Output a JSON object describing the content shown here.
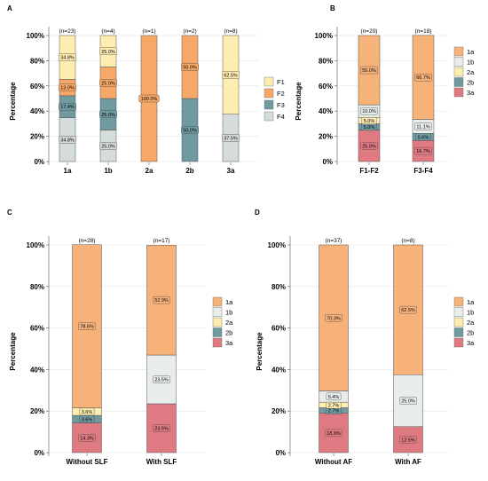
{
  "chart_data": [
    {
      "type": "bar",
      "panel": "A",
      "ylabel": "Percentage",
      "ylim": [
        0,
        100
      ],
      "yticks": [
        "0%",
        "20%",
        "40%",
        "60%",
        "80%",
        "100%"
      ],
      "categories": [
        "1a",
        "1b",
        "2a",
        "2b",
        "3a"
      ],
      "counts": [
        "(n=23)",
        "(n=4)",
        "(n=1)",
        "(n=2)",
        "(n=8)"
      ],
      "series": [
        {
          "name": "F4",
          "color": "#d5dcdc",
          "values": [
            34.8,
            25.0,
            0,
            0,
            37.5
          ],
          "labels": [
            "34.8%",
            "25.0%",
            "",
            "",
            "37.5%"
          ]
        },
        {
          "name": "F3",
          "color": "#6f9aa0",
          "values": [
            17.4,
            25.0,
            0,
            50.0,
            0
          ],
          "labels": [
            "17.4%",
            "25.0%",
            "",
            "50.0%",
            ""
          ]
        },
        {
          "name": "F2",
          "color": "#f7a867",
          "values": [
            13.0,
            25.0,
            100.0,
            50.0,
            0
          ],
          "labels": [
            "13.0%",
            "25.0%",
            "100.0%",
            "50.0%",
            ""
          ]
        },
        {
          "name": "F1",
          "color": "#fdedb0",
          "values": [
            34.8,
            25.0,
            0,
            0,
            62.5
          ],
          "labels": [
            "34.8%",
            "25.0%",
            "",
            "",
            "62.5%"
          ]
        }
      ],
      "legend": [
        "F1",
        "F2",
        "F3",
        "F4"
      ],
      "legend_position": "right"
    },
    {
      "type": "bar",
      "panel": "B",
      "ylabel": "Percentage",
      "ylim": [
        0,
        100
      ],
      "yticks": [
        "0%",
        "20%",
        "40%",
        "60%",
        "80%",
        "100%"
      ],
      "categories": [
        "F1-F2",
        "F3-F4"
      ],
      "counts": [
        "(n=20)",
        "(n=18)"
      ],
      "series": [
        {
          "name": "3a",
          "color": "#e07a82",
          "values": [
            25.0,
            16.7
          ],
          "labels": [
            "25.0%",
            "16.7%"
          ]
        },
        {
          "name": "2b",
          "color": "#6f9aa0",
          "values": [
            5.0,
            5.6
          ],
          "labels": [
            "5.0%",
            "5.6%"
          ]
        },
        {
          "name": "2a",
          "color": "#fdedb0",
          "values": [
            5.0,
            0
          ],
          "labels": [
            "5.0%",
            ""
          ]
        },
        {
          "name": "1b",
          "color": "#e8edec",
          "values": [
            10.0,
            11.1
          ],
          "labels": [
            "10.0%",
            "11.1%"
          ]
        },
        {
          "name": "1a",
          "color": "#f7b27a",
          "values": [
            55.0,
            66.7
          ],
          "labels": [
            "55.0%",
            "66.7%"
          ]
        }
      ],
      "legend": [
        "1a",
        "1b",
        "2a",
        "2b",
        "3a"
      ],
      "legend_position": "right"
    },
    {
      "type": "bar",
      "panel": "C",
      "ylabel": "Percentage",
      "ylim": [
        0,
        100
      ],
      "yticks": [
        "0%",
        "20%",
        "40%",
        "60%",
        "80%",
        "100%"
      ],
      "categories": [
        "Without SLF",
        "With SLF"
      ],
      "counts": [
        "(n=28)",
        "(n=17)"
      ],
      "series": [
        {
          "name": "3a",
          "color": "#e07a82",
          "values": [
            14.3,
            23.5
          ],
          "labels": [
            "14.3%",
            "23.5%"
          ]
        },
        {
          "name": "2b",
          "color": "#6f9aa0",
          "values": [
            3.6,
            0
          ],
          "labels": [
            "3.6%",
            ""
          ]
        },
        {
          "name": "2a",
          "color": "#fdedb0",
          "values": [
            3.6,
            0
          ],
          "labels": [
            "3.6%",
            ""
          ]
        },
        {
          "name": "1b",
          "color": "#e8edec",
          "values": [
            0,
            23.5
          ],
          "labels": [
            "",
            "23.5%"
          ]
        },
        {
          "name": "1a",
          "color": "#f7b27a",
          "values": [
            78.6,
            52.9
          ],
          "labels": [
            "78.6%",
            "52.9%"
          ]
        }
      ],
      "legend": [
        "1a",
        "1b",
        "2a",
        "2b",
        "3a"
      ],
      "legend_position": "right"
    },
    {
      "type": "bar",
      "panel": "D",
      "ylabel": "Percentage",
      "ylim": [
        0,
        100
      ],
      "yticks": [
        "0%",
        "20%",
        "40%",
        "60%",
        "80%",
        "100%"
      ],
      "categories": [
        "Without AF",
        "With AF"
      ],
      "counts": [
        "(n=37)",
        "(n=8)"
      ],
      "series": [
        {
          "name": "3a",
          "color": "#e07a82",
          "values": [
            18.9,
            12.5
          ],
          "labels": [
            "18.9%",
            "12.5%"
          ]
        },
        {
          "name": "2b",
          "color": "#6f9aa0",
          "values": [
            2.7,
            0
          ],
          "labels": [
            "2.7%",
            ""
          ]
        },
        {
          "name": "2a",
          "color": "#fdedb0",
          "values": [
            2.7,
            0
          ],
          "labels": [
            "2.7%",
            ""
          ]
        },
        {
          "name": "1b",
          "color": "#e8edec",
          "values": [
            5.4,
            25.0
          ],
          "labels": [
            "5.4%",
            "25.0%"
          ]
        },
        {
          "name": "1a",
          "color": "#f7b27a",
          "values": [
            70.3,
            62.5
          ],
          "labels": [
            "70.3%",
            "62.5%"
          ]
        }
      ],
      "legend": [
        "1a",
        "1b",
        "2a",
        "2b",
        "3a"
      ],
      "legend_position": "right"
    }
  ]
}
